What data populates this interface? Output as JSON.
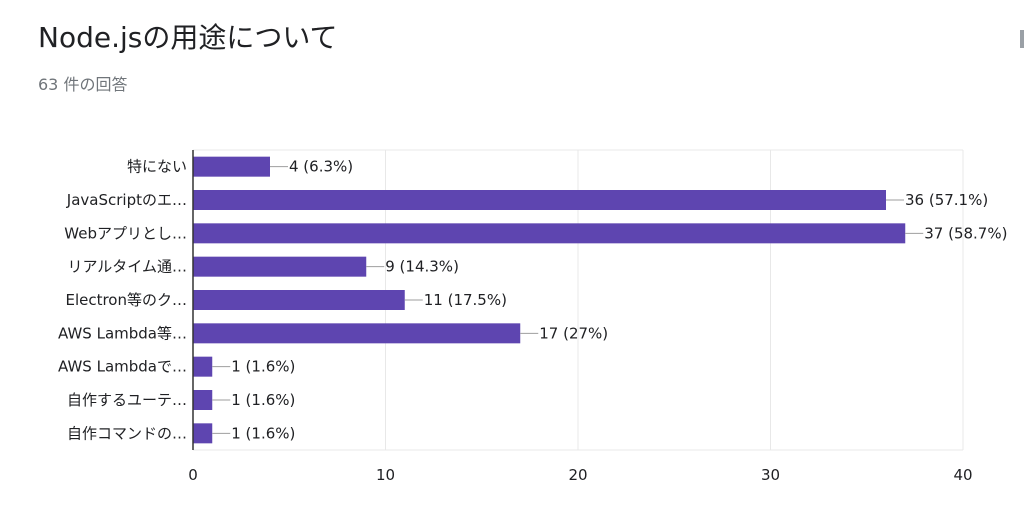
{
  "header": {
    "title": "Node.jsの用途について",
    "subtitle": "63 件の回答"
  },
  "chart_data": {
    "type": "bar",
    "orientation": "horizontal",
    "categories": [
      "特にない",
      "JavaScriptのエ…",
      "Webアプリとし…",
      "リアルタイム通…",
      "Electron等のク…",
      "AWS Lambda等…",
      "AWS Lambdaで…",
      "自作するユーテ…",
      "自作コマンドの…"
    ],
    "values": [
      4,
      36,
      37,
      9,
      11,
      17,
      1,
      1,
      1
    ],
    "data_labels": [
      "4 (6.3%)",
      "36 (57.1%)",
      "37 (58.7%)",
      "9 (14.3%)",
      "11 (17.5%)",
      "17 (27%)",
      "1 (1.6%)",
      "1 (1.6%)",
      "1 (1.6%)"
    ],
    "xlim": [
      0,
      40
    ],
    "xticks": [
      0,
      10,
      20,
      30,
      40
    ],
    "grid": true,
    "bar_color": "#5e45b0",
    "grid_color": "#e8e8e8",
    "axis_color": "#333333",
    "connector_color": "#9e9e9e"
  }
}
